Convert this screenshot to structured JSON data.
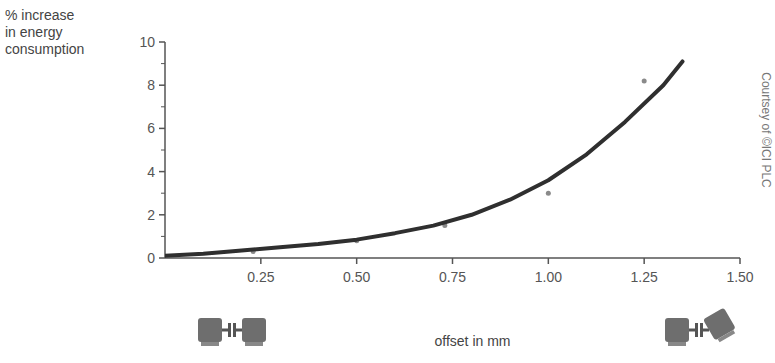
{
  "chart_data": {
    "type": "scatter",
    "y_label": [
      "% increase",
      "in energy",
      "consumption"
    ],
    "x_label": "offset in mm",
    "credit": "Courtsey of ©ICI PLC",
    "xlim": [
      0,
      1.5
    ],
    "ylim": [
      0,
      10
    ],
    "xticks": [
      {
        "value": 0.25,
        "label": "0.25"
      },
      {
        "value": 0.5,
        "label": "0.50"
      },
      {
        "value": 0.75,
        "label": "0.75"
      },
      {
        "value": 1,
        "label": "1.00"
      },
      {
        "value": 1.25,
        "label": "1.25"
      },
      {
        "value": 1.5,
        "label": "1.50"
      }
    ],
    "yticks": [
      0,
      2,
      4,
      6,
      8,
      10
    ],
    "grid": false,
    "series": [
      {
        "type": "scatter",
        "color": "#8a8a8a",
        "marker": "circle",
        "x": [
          0.23,
          0.5,
          0.73,
          1.0,
          1.25
        ],
        "values": [
          0.3,
          0.8,
          1.5,
          3.0,
          8.2
        ]
      },
      {
        "type": "line",
        "color": "#2f2f2f",
        "line_style": "solid",
        "x": [
          0,
          0.1,
          0.2,
          0.3,
          0.4,
          0.5,
          0.6,
          0.7,
          0.8,
          0.9,
          1.0,
          1.1,
          1.2,
          1.3,
          1.35
        ],
        "values": [
          0.1,
          0.2,
          0.35,
          0.5,
          0.65,
          0.85,
          1.15,
          1.5,
          2.0,
          2.7,
          3.6,
          4.8,
          6.3,
          8.0,
          9.1
        ]
      }
    ]
  }
}
